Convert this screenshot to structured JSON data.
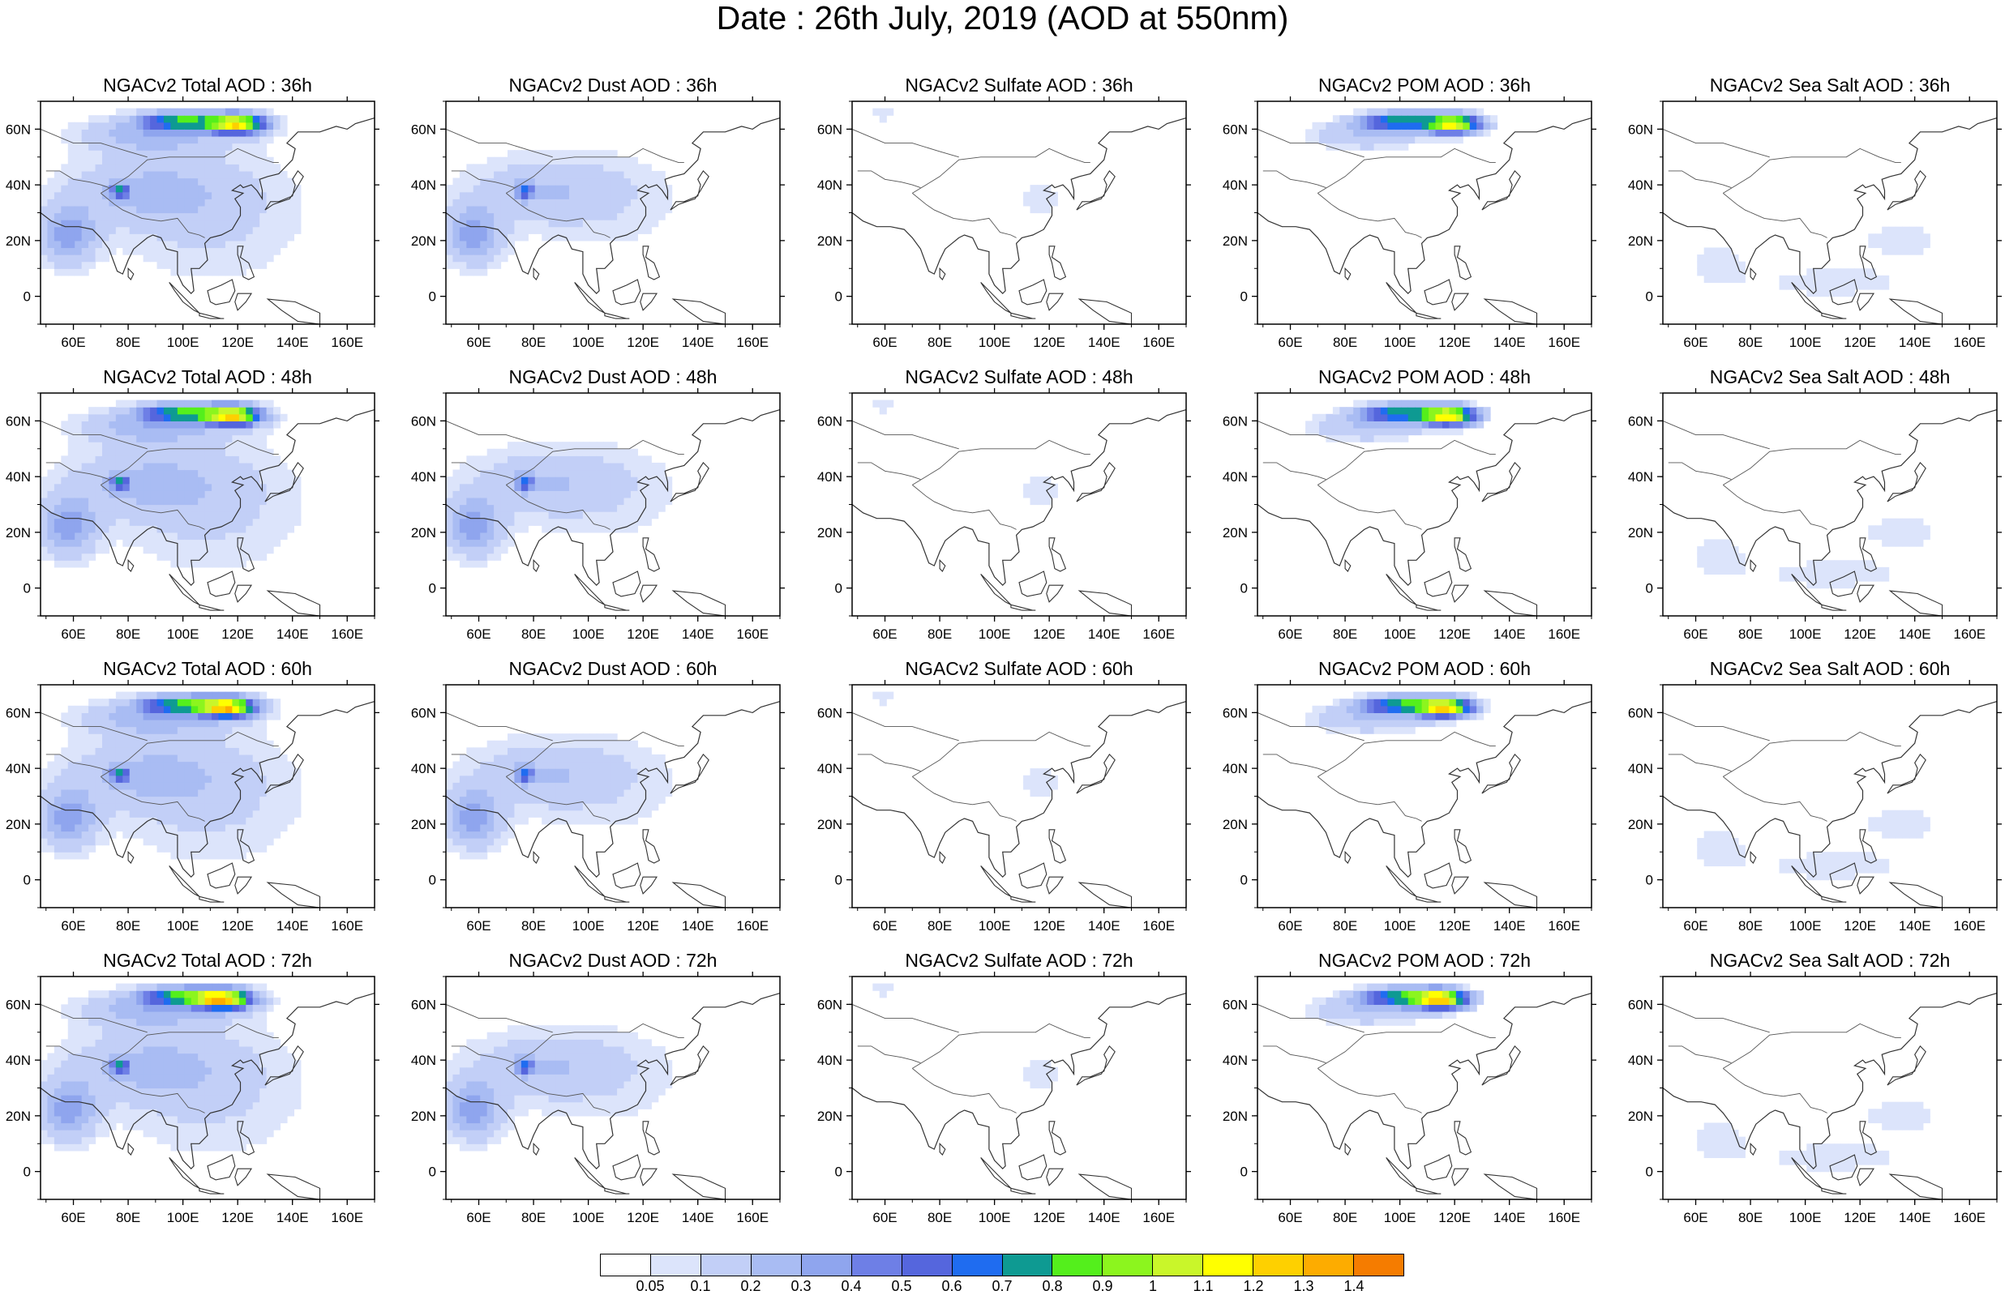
{
  "figure": {
    "title": "Date : 26th July, 2019 (AOD at 550nm)"
  },
  "panels": [
    {
      "title": "NGACv2 Total AOD : 36h",
      "component": "total",
      "hour": 36
    },
    {
      "title": "NGACv2 Dust AOD : 36h",
      "component": "dust",
      "hour": 36
    },
    {
      "title": "NGACv2 Sulfate AOD : 36h",
      "component": "sulfate",
      "hour": 36
    },
    {
      "title": "NGACv2 POM AOD : 36h",
      "component": "pom",
      "hour": 36
    },
    {
      "title": "NGACv2 Sea Salt AOD : 36h",
      "component": "seasalt",
      "hour": 36
    },
    {
      "title": "NGACv2 Total AOD : 48h",
      "component": "total",
      "hour": 48
    },
    {
      "title": "NGACv2 Dust AOD : 48h",
      "component": "dust",
      "hour": 48
    },
    {
      "title": "NGACv2 Sulfate AOD : 48h",
      "component": "sulfate",
      "hour": 48
    },
    {
      "title": "NGACv2 POM AOD : 48h",
      "component": "pom",
      "hour": 48
    },
    {
      "title": "NGACv2 Sea Salt AOD : 48h",
      "component": "seasalt",
      "hour": 48
    },
    {
      "title": "NGACv2 Total AOD : 60h",
      "component": "total",
      "hour": 60
    },
    {
      "title": "NGACv2 Dust AOD : 60h",
      "component": "dust",
      "hour": 60
    },
    {
      "title": "NGACv2 Sulfate AOD : 60h",
      "component": "sulfate",
      "hour": 60
    },
    {
      "title": "NGACv2 POM AOD : 60h",
      "component": "pom",
      "hour": 60
    },
    {
      "title": "NGACv2 Sea Salt AOD : 60h",
      "component": "seasalt",
      "hour": 60
    },
    {
      "title": "NGACv2 Total AOD : 72h",
      "component": "total",
      "hour": 72
    },
    {
      "title": "NGACv2 Dust AOD : 72h",
      "component": "dust",
      "hour": 72
    },
    {
      "title": "NGACv2 Sulfate AOD : 72h",
      "component": "sulfate",
      "hour": 72
    },
    {
      "title": "NGACv2 POM AOD : 72h",
      "component": "pom",
      "hour": 72
    },
    {
      "title": "NGACv2 Sea Salt  AOD : 72h",
      "component": "seasalt",
      "hour": 72
    }
  ],
  "axes": {
    "lon_range": [
      48,
      170
    ],
    "lat_range": [
      -10,
      70
    ],
    "x_ticks": [
      {
        "value": 60,
        "label": "60E"
      },
      {
        "value": 80,
        "label": "80E"
      },
      {
        "value": 100,
        "label": "100E"
      },
      {
        "value": 120,
        "label": "120E"
      },
      {
        "value": 140,
        "label": "140E"
      },
      {
        "value": 160,
        "label": "160E"
      }
    ],
    "y_ticks": [
      {
        "value": 60,
        "label": "60N"
      },
      {
        "value": 40,
        "label": "40N"
      },
      {
        "value": 20,
        "label": "20N"
      },
      {
        "value": 0,
        "label": "0"
      }
    ]
  },
  "colorbar": {
    "labels": [
      "0.05",
      "0.1",
      "0.2",
      "0.3",
      "0.4",
      "0.5",
      "0.6",
      "0.7",
      "0.8",
      "0.9",
      "1",
      "1.1",
      "1.2",
      "1.3",
      "1.4"
    ],
    "colors": [
      "#ffffff",
      "#dce4fb",
      "#c2cff7",
      "#a9bcf3",
      "#8fa5ee",
      "#6e7fe6",
      "#5566dd",
      "#1f6cf0",
      "#0e9a92",
      "#54ef1c",
      "#8cf51e",
      "#c9f62a",
      "#ffff00",
      "#fed000",
      "#fdac00",
      "#f57c00",
      "#f51c10"
    ]
  },
  "plumes": [
    {
      "components": [
        "total",
        "pom"
      ],
      "lon": 120,
      "lat": 62,
      "value": 1.2
    },
    {
      "components": [
        "total",
        "pom"
      ],
      "lon": 100,
      "lat": 63,
      "value": 0.8
    },
    {
      "components": [
        "total",
        "dust"
      ],
      "lon": 77,
      "lat": 38,
      "value": 0.8
    },
    {
      "components": [
        "total",
        "dust"
      ],
      "lon": 57,
      "lat": 25,
      "value": 0.5
    }
  ]
}
